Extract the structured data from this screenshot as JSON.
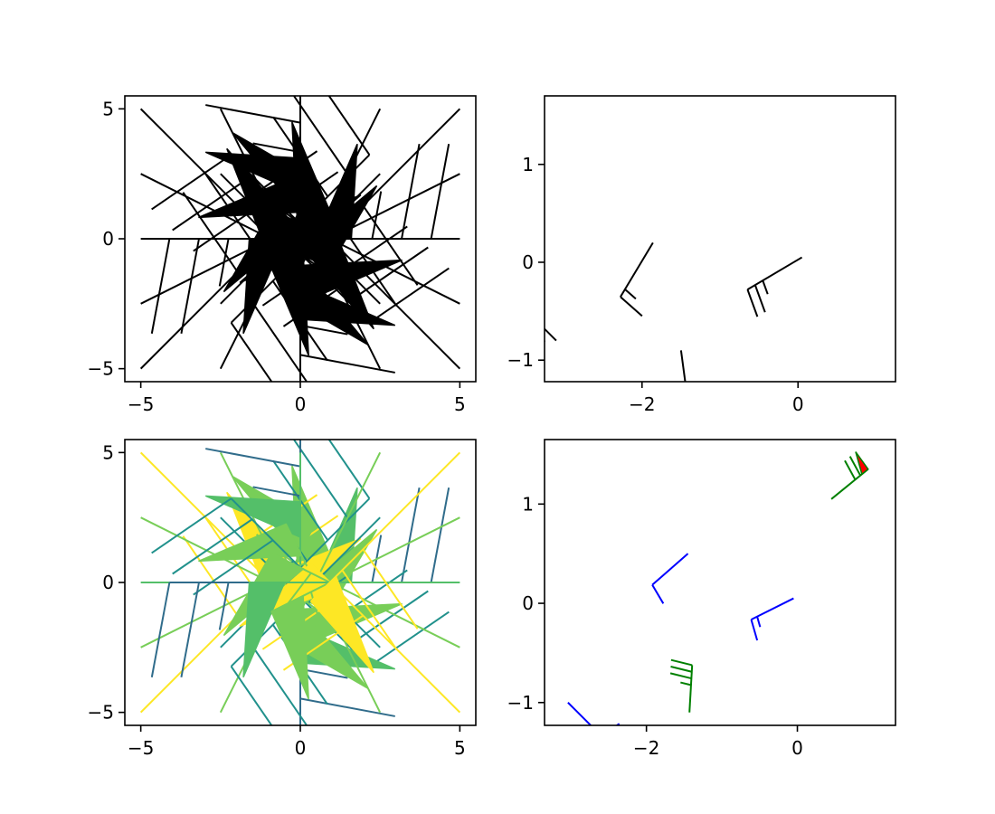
{
  "chart_data": [
    {
      "type": "scatter",
      "panel": "top-left",
      "xlim": [
        -5.5,
        5.5
      ],
      "ylim": [
        -5.5,
        5.5
      ],
      "xticks": [
        -5,
        0,
        5
      ],
      "yticks": [
        -5,
        0,
        5
      ],
      "xtick_labels": [
        "−5",
        "0",
        "5"
      ],
      "ytick_labels": [
        "−5",
        "0",
        "5"
      ],
      "grid": false,
      "color": "#000000",
      "barb_length": 4.0,
      "points": [
        {
          "x": -5,
          "y": -5,
          "u": -50,
          "v": -50
        },
        {
          "x": -5,
          "y": -2.5,
          "u": -50,
          "v": -25
        },
        {
          "x": -5,
          "y": 0,
          "u": -50,
          "v": 0
        },
        {
          "x": -5,
          "y": 2.5,
          "u": -50,
          "v": 25
        },
        {
          "x": -5,
          "y": 5,
          "u": -50,
          "v": 50
        },
        {
          "x": -2.5,
          "y": -5,
          "u": -25,
          "v": -50
        },
        {
          "x": -2.5,
          "y": -2.5,
          "u": -25,
          "v": -25
        },
        {
          "x": -2.5,
          "y": 0,
          "u": -25,
          "v": 0
        },
        {
          "x": -2.5,
          "y": 2.5,
          "u": -25,
          "v": 25
        },
        {
          "x": -2.5,
          "y": 5,
          "u": -25,
          "v": 50
        },
        {
          "x": 0,
          "y": -5,
          "u": 0,
          "v": -50
        },
        {
          "x": 0,
          "y": -2.5,
          "u": 0,
          "v": -25
        },
        {
          "x": 0,
          "y": 0,
          "u": 0,
          "v": 0
        },
        {
          "x": 0,
          "y": 2.5,
          "u": 0,
          "v": 25
        },
        {
          "x": 0,
          "y": 5,
          "u": 0,
          "v": 50
        },
        {
          "x": 2.5,
          "y": -5,
          "u": 25,
          "v": -50
        },
        {
          "x": 2.5,
          "y": -2.5,
          "u": 25,
          "v": -25
        },
        {
          "x": 2.5,
          "y": 0,
          "u": 25,
          "v": 0
        },
        {
          "x": 2.5,
          "y": 2.5,
          "u": 25,
          "v": 25
        },
        {
          "x": 2.5,
          "y": 5,
          "u": 25,
          "v": 50
        },
        {
          "x": 5,
          "y": -5,
          "u": 50,
          "v": -50
        },
        {
          "x": 5,
          "y": -2.5,
          "u": 50,
          "v": -25
        },
        {
          "x": 5,
          "y": 0,
          "u": 50,
          "v": 0
        },
        {
          "x": 5,
          "y": 2.5,
          "u": 50,
          "v": 25
        },
        {
          "x": 5,
          "y": 5,
          "u": 50,
          "v": 50
        }
      ]
    },
    {
      "type": "scatter",
      "panel": "top-right",
      "xlim": [
        -3.25,
        1.25
      ],
      "ylim": [
        -1.22,
        1.7
      ],
      "xticks": [
        -2,
        0
      ],
      "yticks": [
        -1,
        0,
        1
      ],
      "xtick_labels": [
        "−2",
        "0"
      ],
      "ytick_labels": [
        "−1",
        "0",
        "1"
      ],
      "grid": false,
      "color": "#000000",
      "barb_length": 1.2,
      "points": [
        {
          "x": 1.3,
          "y": 1.7,
          "u": -55,
          "v": -45
        },
        {
          "x": -1.86,
          "y": 0.2,
          "u": 9,
          "v": 15
        },
        {
          "x": 0.05,
          "y": 0.05,
          "u": 22,
          "v": 13
        },
        {
          "x": -1.5,
          "y": -0.9,
          "u": -4,
          "v": 30
        },
        {
          "x": -3.25,
          "y": -0.8,
          "u": 7,
          "v": 20
        },
        {
          "x": 1.25,
          "y": -1.22,
          "u": -19,
          "v": 16
        },
        {
          "x": -3.1,
          "y": -0.8,
          "u": 15,
          "v": -15
        }
      ]
    },
    {
      "type": "scatter",
      "panel": "bottom-left",
      "xlim": [
        -5.5,
        5.5
      ],
      "ylim": [
        -5.5,
        5.5
      ],
      "xticks": [
        -5,
        0,
        5
      ],
      "yticks": [
        -5,
        0,
        5
      ],
      "xtick_labels": [
        "−5",
        "0",
        "5"
      ],
      "ytick_labels": [
        "−5",
        "0",
        "5"
      ],
      "grid": false,
      "colormap": "viridis",
      "barb_length": 4.0,
      "points": [
        {
          "x": -5,
          "y": -5,
          "u": -50,
          "v": -50
        },
        {
          "x": -5,
          "y": -2.5,
          "u": -50,
          "v": -25
        },
        {
          "x": -5,
          "y": 0,
          "u": -50,
          "v": 0
        },
        {
          "x": -5,
          "y": 2.5,
          "u": -50,
          "v": 25
        },
        {
          "x": -5,
          "y": 5,
          "u": -50,
          "v": 50
        },
        {
          "x": -2.5,
          "y": -5,
          "u": -25,
          "v": -50
        },
        {
          "x": -2.5,
          "y": -2.5,
          "u": -25,
          "v": -25
        },
        {
          "x": -2.5,
          "y": 0,
          "u": -25,
          "v": 0
        },
        {
          "x": -2.5,
          "y": 2.5,
          "u": -25,
          "v": 25
        },
        {
          "x": -2.5,
          "y": 5,
          "u": -25,
          "v": 50
        },
        {
          "x": 0,
          "y": -5,
          "u": 0,
          "v": -50
        },
        {
          "x": 0,
          "y": -2.5,
          "u": 0,
          "v": -25
        },
        {
          "x": 0,
          "y": 0,
          "u": 0,
          "v": 0
        },
        {
          "x": 0,
          "y": 2.5,
          "u": 0,
          "v": 25
        },
        {
          "x": 0,
          "y": 5,
          "u": 0,
          "v": 50
        },
        {
          "x": 2.5,
          "y": -5,
          "u": 25,
          "v": -50
        },
        {
          "x": 2.5,
          "y": -2.5,
          "u": 25,
          "v": -25
        },
        {
          "x": 2.5,
          "y": 0,
          "u": 25,
          "v": 0
        },
        {
          "x": 2.5,
          "y": 2.5,
          "u": 25,
          "v": 25
        },
        {
          "x": 2.5,
          "y": 5,
          "u": 25,
          "v": 50
        },
        {
          "x": 5,
          "y": -5,
          "u": 50,
          "v": -50
        },
        {
          "x": 5,
          "y": -2.5,
          "u": 50,
          "v": -25
        },
        {
          "x": 5,
          "y": 0,
          "u": 50,
          "v": 0
        },
        {
          "x": 5,
          "y": 2.5,
          "u": 50,
          "v": 25
        },
        {
          "x": 5,
          "y": 5,
          "u": 50,
          "v": 50
        }
      ]
    },
    {
      "type": "scatter",
      "panel": "bottom-right",
      "xlim": [
        -3.35,
        1.3
      ],
      "ylim": [
        -1.23,
        1.65
      ],
      "xticks": [
        -2,
        0
      ],
      "yticks": [
        -1,
        0,
        1
      ],
      "xtick_labels": [
        "−2",
        "0"
      ],
      "ytick_labels": [
        "−1",
        "0",
        "1"
      ],
      "grid": false,
      "barb_length": 0.9,
      "points": [
        {
          "x": 1.3,
          "y": -1.23,
          "u": -4,
          "v": 3,
          "color": "#008000"
        },
        {
          "x": -1.45,
          "y": 0.5,
          "u": 8,
          "v": 7,
          "color": "#0000ff"
        },
        {
          "x": -0.05,
          "y": 0.05,
          "u": 12,
          "v": 6,
          "color": "#0000ff"
        },
        {
          "x": -1.43,
          "y": -1.1,
          "u": -2,
          "v": -35,
          "color": "#008000"
        },
        {
          "x": -3.04,
          "y": -1.0,
          "u": -6,
          "v": 6,
          "color": "#0000ff"
        },
        {
          "x": 0.45,
          "y": 1.05,
          "u": -54,
          "v": -44,
          "color": "#008000",
          "flagcolor": "#ff0000"
        }
      ]
    }
  ]
}
